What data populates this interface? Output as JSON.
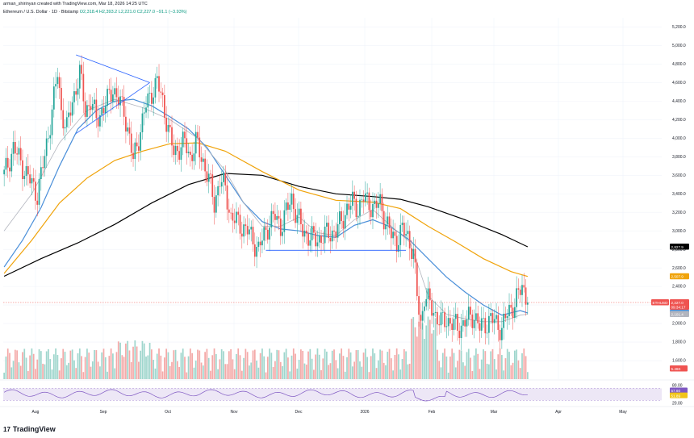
{
  "header": {
    "author_line": "arman_shirinyan created with TradingView.com, Mar 18, 2026 14:25 UTC",
    "symbol_line": "Ethereum / U.S. Dollar · 1D · Bitstamp",
    "ohlc": "O2,318.4 H2,393.2 L2,221.0 C2,227.0 −91.1 (−3.93%)"
  },
  "brand": {
    "mark": "17",
    "name": "TradingView"
  },
  "colors": {
    "up": "#26a69a",
    "down": "#ef5350",
    "ma20": "#b2b5be",
    "ma50": "#4a8fd9",
    "ma100": "#f0a30a",
    "ma200": "#000000",
    "trend": "#2962ff"
  },
  "chart_data": {
    "type": "candlestick",
    "ylim": [
      1400,
      5300
    ],
    "y_ticks": [
      "5,200.0",
      "5,000.0",
      "4,800.0",
      "4,600.0",
      "4,400.0",
      "4,200.0",
      "4,000.0",
      "3,800.0",
      "3,600.0",
      "3,400.0",
      "3,200.0",
      "3,000.0",
      "2,800.0",
      "2,600.0",
      "2,400.0",
      "2,200.0",
      "2,000.0",
      "1,800.0",
      "1,600.0"
    ],
    "x_ticks": [
      "Aug",
      "Sep",
      "Oct",
      "Nov",
      "Dec",
      "2026",
      "Feb",
      "Mar",
      "Apr",
      "May"
    ],
    "candle_anchors": [
      [
        0,
        3600
      ],
      [
        5,
        3900
      ],
      [
        10,
        3700
      ],
      [
        15,
        3500
      ],
      [
        18,
        3400
      ],
      [
        22,
        3800
      ],
      [
        26,
        4300
      ],
      [
        29,
        4700
      ],
      [
        31,
        4300
      ],
      [
        34,
        4100
      ],
      [
        37,
        4400
      ],
      [
        41,
        4700
      ],
      [
        44,
        4300
      ],
      [
        47,
        4400
      ],
      [
        50,
        4200
      ],
      [
        53,
        4300
      ],
      [
        56,
        4400
      ],
      [
        59,
        4550
      ],
      [
        62,
        4400
      ],
      [
        65,
        4300
      ],
      [
        68,
        4000
      ],
      [
        70,
        3750
      ],
      [
        74,
        4100
      ],
      [
        77,
        4350
      ],
      [
        80,
        4500
      ],
      [
        83,
        4600
      ],
      [
        86,
        4400
      ],
      [
        88,
        4200
      ],
      [
        90,
        4000
      ],
      [
        92,
        3850
      ],
      [
        95,
        3900
      ],
      [
        98,
        3950
      ],
      [
        101,
        3800
      ],
      [
        104,
        3950
      ],
      [
        108,
        3750
      ],
      [
        111,
        3550
      ],
      [
        114,
        3300
      ],
      [
        117,
        3550
      ],
      [
        120,
        3450
      ],
      [
        123,
        3150
      ],
      [
        126,
        3100
      ],
      [
        129,
        3050
      ],
      [
        132,
        3000
      ],
      [
        135,
        2900
      ],
      [
        138,
        2800
      ],
      [
        141,
        2950
      ],
      [
        144,
        3100
      ],
      [
        147,
        3150
      ],
      [
        150,
        3050
      ],
      [
        153,
        3200
      ],
      [
        156,
        3350
      ],
      [
        159,
        3150
      ],
      [
        162,
        3000
      ],
      [
        165,
        2950
      ],
      [
        168,
        2900
      ],
      [
        171,
        2920
      ],
      [
        174,
        2950
      ],
      [
        177,
        2980
      ],
      [
        180,
        3000
      ],
      [
        183,
        3100
      ],
      [
        186,
        3250
      ],
      [
        189,
        3300
      ],
      [
        192,
        3250
      ],
      [
        195,
        3350
      ],
      [
        198,
        3300
      ],
      [
        201,
        3250
      ],
      [
        204,
        3300
      ],
      [
        207,
        3100
      ],
      [
        210,
        2950
      ],
      [
        213,
        2900
      ],
      [
        216,
        3000
      ],
      [
        219,
        2950
      ],
      [
        222,
        2750
      ],
      [
        224,
        2300
      ],
      [
        226,
        2000
      ],
      [
        228,
        2300
      ],
      [
        231,
        2200
      ],
      [
        234,
        2100
      ],
      [
        237,
        2000
      ],
      [
        240,
        2050
      ],
      [
        243,
        2000
      ],
      [
        246,
        1950
      ],
      [
        249,
        2000
      ],
      [
        252,
        2050
      ],
      [
        255,
        2100
      ],
      [
        258,
        1950
      ],
      [
        261,
        2000
      ],
      [
        264,
        2050
      ],
      [
        267,
        2000
      ],
      [
        270,
        1950
      ],
      [
        273,
        2100
      ],
      [
        276,
        2200
      ],
      [
        279,
        2300
      ],
      [
        281,
        2400
      ],
      [
        283,
        2300
      ],
      [
        284,
        2227
      ]
    ],
    "moving_averages": [
      {
        "label": "2,827.9",
        "color": "#000000",
        "points": [
          [
            0,
            2510
          ],
          [
            20,
            2700
          ],
          [
            40,
            2870
          ],
          [
            60,
            3070
          ],
          [
            80,
            3300
          ],
          [
            100,
            3500
          ],
          [
            120,
            3620
          ],
          [
            140,
            3600
          ],
          [
            160,
            3480
          ],
          [
            180,
            3400
          ],
          [
            200,
            3370
          ],
          [
            215,
            3340
          ],
          [
            230,
            3260
          ],
          [
            250,
            3120
          ],
          [
            270,
            2960
          ],
          [
            284,
            2828
          ]
        ]
      },
      {
        "label": "2,507.9",
        "color": "#f0a30a",
        "points": [
          [
            0,
            2540
          ],
          [
            15,
            2900
          ],
          [
            30,
            3300
          ],
          [
            45,
            3570
          ],
          [
            60,
            3760
          ],
          [
            75,
            3860
          ],
          [
            90,
            3940
          ],
          [
            105,
            3950
          ],
          [
            120,
            3860
          ],
          [
            140,
            3640
          ],
          [
            160,
            3440
          ],
          [
            180,
            3330
          ],
          [
            200,
            3310
          ],
          [
            215,
            3240
          ],
          [
            230,
            3050
          ],
          [
            245,
            2880
          ],
          [
            260,
            2700
          ],
          [
            275,
            2560
          ],
          [
            284,
            2508
          ]
        ]
      },
      {
        "label": "2,114.1",
        "color": "#4a8fd9",
        "points": [
          [
            0,
            2610
          ],
          [
            10,
            2900
          ],
          [
            20,
            3250
          ],
          [
            30,
            3700
          ],
          [
            40,
            4100
          ],
          [
            50,
            4300
          ],
          [
            60,
            4400
          ],
          [
            70,
            4420
          ],
          [
            80,
            4350
          ],
          [
            90,
            4230
          ],
          [
            100,
            4100
          ],
          [
            110,
            3900
          ],
          [
            120,
            3600
          ],
          [
            130,
            3300
          ],
          [
            140,
            3100
          ],
          [
            150,
            3020
          ],
          [
            160,
            3000
          ],
          [
            170,
            2950
          ],
          [
            180,
            2930
          ],
          [
            190,
            3060
          ],
          [
            200,
            3120
          ],
          [
            210,
            3040
          ],
          [
            220,
            2900
          ],
          [
            230,
            2700
          ],
          [
            240,
            2500
          ],
          [
            250,
            2340
          ],
          [
            260,
            2200
          ],
          [
            270,
            2090
          ],
          [
            280,
            2140
          ],
          [
            284,
            2114
          ]
        ]
      },
      {
        "label": "2,101.4",
        "color": "#b2b5be",
        "points": [
          [
            0,
            3000
          ],
          [
            15,
            3400
          ],
          [
            30,
            3950
          ],
          [
            45,
            4300
          ],
          [
            60,
            4420
          ],
          [
            75,
            4330
          ],
          [
            90,
            4200
          ],
          [
            105,
            4000
          ],
          [
            120,
            3650
          ],
          [
            130,
            3300
          ],
          [
            140,
            3050
          ],
          [
            150,
            3050
          ],
          [
            160,
            3150
          ],
          [
            170,
            2980
          ],
          [
            180,
            2950
          ],
          [
            190,
            3120
          ],
          [
            200,
            3230
          ],
          [
            210,
            3050
          ],
          [
            220,
            2880
          ],
          [
            225,
            2600
          ],
          [
            230,
            2300
          ],
          [
            240,
            2100
          ],
          [
            250,
            2050
          ],
          [
            260,
            2020
          ],
          [
            270,
            2020
          ],
          [
            280,
            2090
          ],
          [
            284,
            2101
          ]
        ]
      }
    ],
    "price_label": {
      "label": "ETHUSD",
      "value": "2,227.0",
      "countdown": "09:34:17"
    },
    "volume_label": "5.46K",
    "rsi": {
      "ylim": [
        20,
        90
      ],
      "ticks": [
        "80.00",
        "20.00"
      ],
      "labels": [
        "57.60",
        "51.89"
      ]
    },
    "trendlines": [
      {
        "type": "triangle-upper",
        "points": [
          [
            39,
            4900
          ],
          [
            79,
            4600
          ]
        ]
      },
      {
        "type": "triangle-lower",
        "points": [
          [
            39,
            4050
          ],
          [
            79,
            4600
          ]
        ]
      },
      {
        "type": "support",
        "points": [
          [
            142,
            2790
          ],
          [
            218,
            2790
          ]
        ]
      }
    ]
  }
}
